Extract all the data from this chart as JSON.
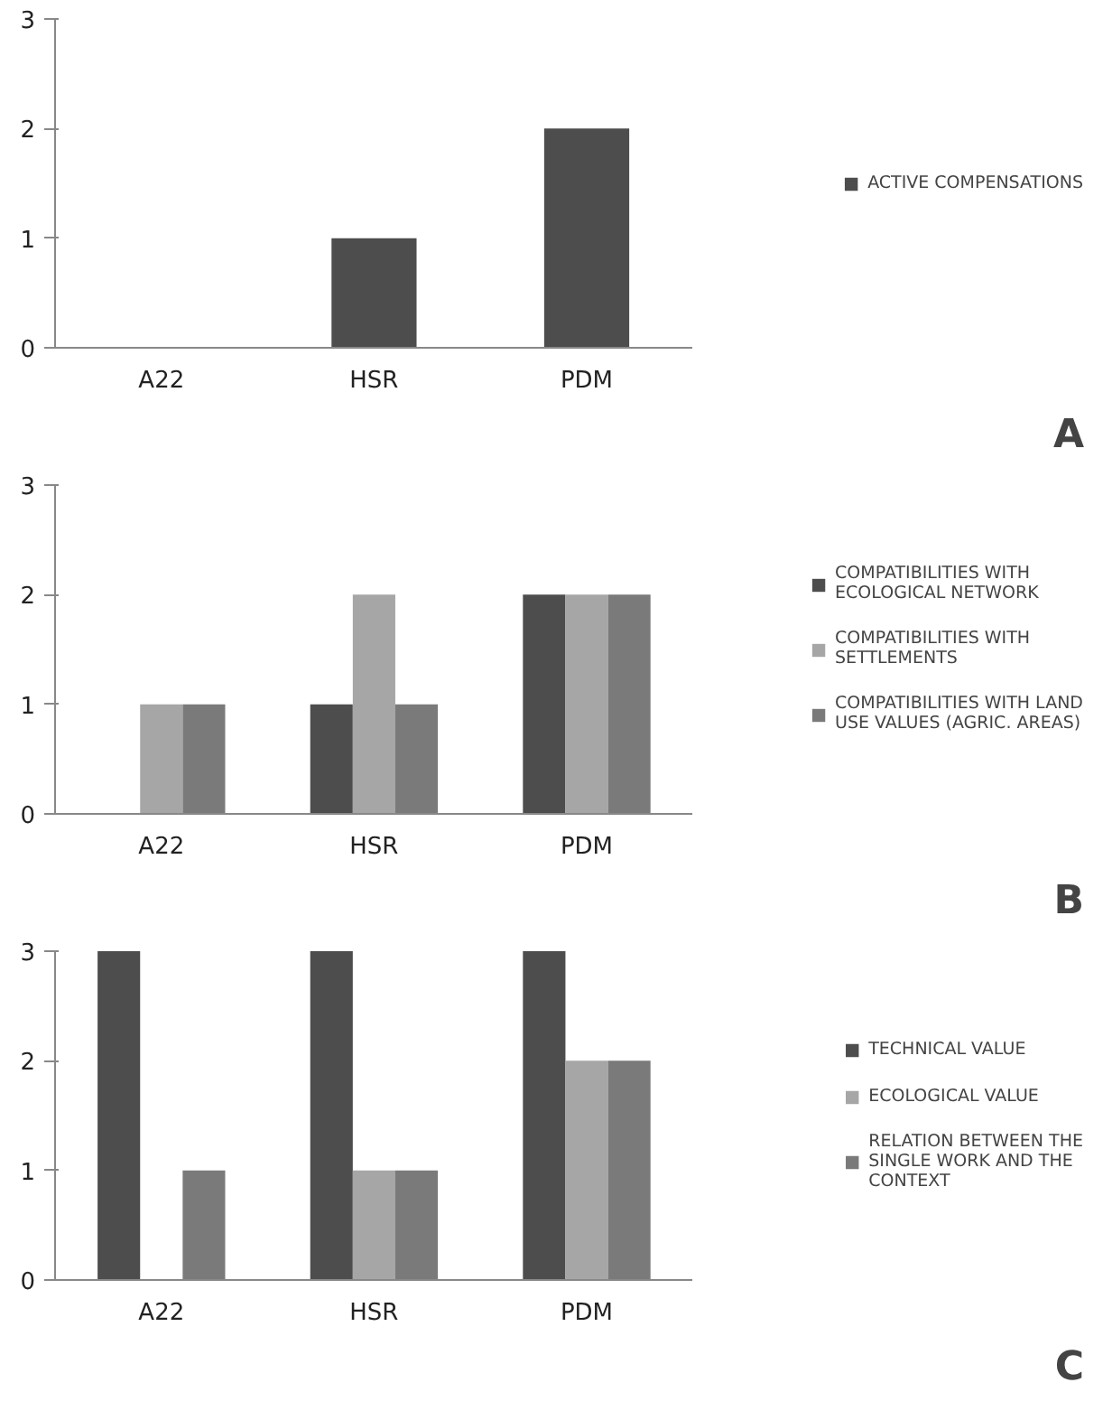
{
  "chart_data": [
    {
      "type": "bar",
      "categories": [
        "A22",
        "HSR",
        "PDM"
      ],
      "series": [
        {
          "name": "ACTIVE COMPENSATIONS",
          "color": "#4d4d4d",
          "values": [
            0,
            1,
            2
          ]
        }
      ],
      "ylim": [
        0,
        3
      ],
      "yticks": [
        0,
        1,
        2,
        3
      ],
      "grid": false,
      "legend": "right",
      "annotations": [
        "A"
      ]
    },
    {
      "type": "bar",
      "categories": [
        "A22",
        "HSR",
        "PDM"
      ],
      "series": [
        {
          "name": "COMPATIBILITIES WITH ECOLOGICAL NETWORK",
          "color": "#4d4d4d",
          "values": [
            0,
            1,
            2
          ]
        },
        {
          "name": "COMPATIBILITIES WITH SETTLEMENTS",
          "color": "#a6a6a6",
          "values": [
            1,
            2,
            2
          ]
        },
        {
          "name": "COMPATIBILITIES WITH LAND USE VALUES (AGRIC. AREAS)",
          "color": "#7a7a7a",
          "values": [
            1,
            1,
            2
          ]
        }
      ],
      "ylim": [
        0,
        3
      ],
      "yticks": [
        0,
        1,
        2,
        3
      ],
      "grid": false,
      "legend": "right",
      "annotations": [
        "B"
      ]
    },
    {
      "type": "bar",
      "categories": [
        "A22",
        "HSR",
        "PDM"
      ],
      "series": [
        {
          "name": "TECHNICAL VALUE",
          "color": "#4d4d4d",
          "values": [
            3,
            3,
            3
          ]
        },
        {
          "name": "ECOLOGICAL VALUE",
          "color": "#a6a6a6",
          "values": [
            0,
            1,
            2
          ]
        },
        {
          "name": "RELATION BETWEEN THE SINGLE WORK AND THE CONTEXT",
          "color": "#7a7a7a",
          "values": [
            1,
            1,
            2
          ]
        }
      ],
      "ylim": [
        0,
        3
      ],
      "yticks": [
        0,
        1,
        2,
        3
      ],
      "grid": false,
      "legend": "right",
      "annotations": [
        "C"
      ]
    }
  ]
}
